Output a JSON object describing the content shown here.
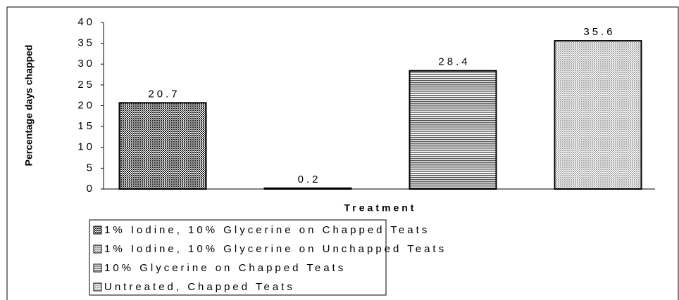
{
  "chart_data": {
    "type": "bar",
    "y_label": "Percentage days chapped",
    "x_label": "Treatment",
    "categories": [
      "1% Iodine, 10% Glycerine on Chapped Teats",
      "1% Iodine, 10% Glycerine on Unchapped Teats",
      "10% Glycerine on Chapped Teats",
      "Untreated, Chapped Teats"
    ],
    "values": [
      20.7,
      0.2,
      28.4,
      35.6
    ],
    "fills": [
      {
        "color": "#222222",
        "pattern": "dots"
      },
      {
        "color": "#888888",
        "pattern": "dots"
      },
      {
        "color": "#555555",
        "pattern": "stripes"
      },
      {
        "color": "#aaaaaa",
        "pattern": "dots"
      }
    ],
    "ylim": [
      0,
      40
    ],
    "yticks": [
      0,
      5,
      10,
      15,
      20,
      25,
      30,
      35,
      40
    ]
  }
}
